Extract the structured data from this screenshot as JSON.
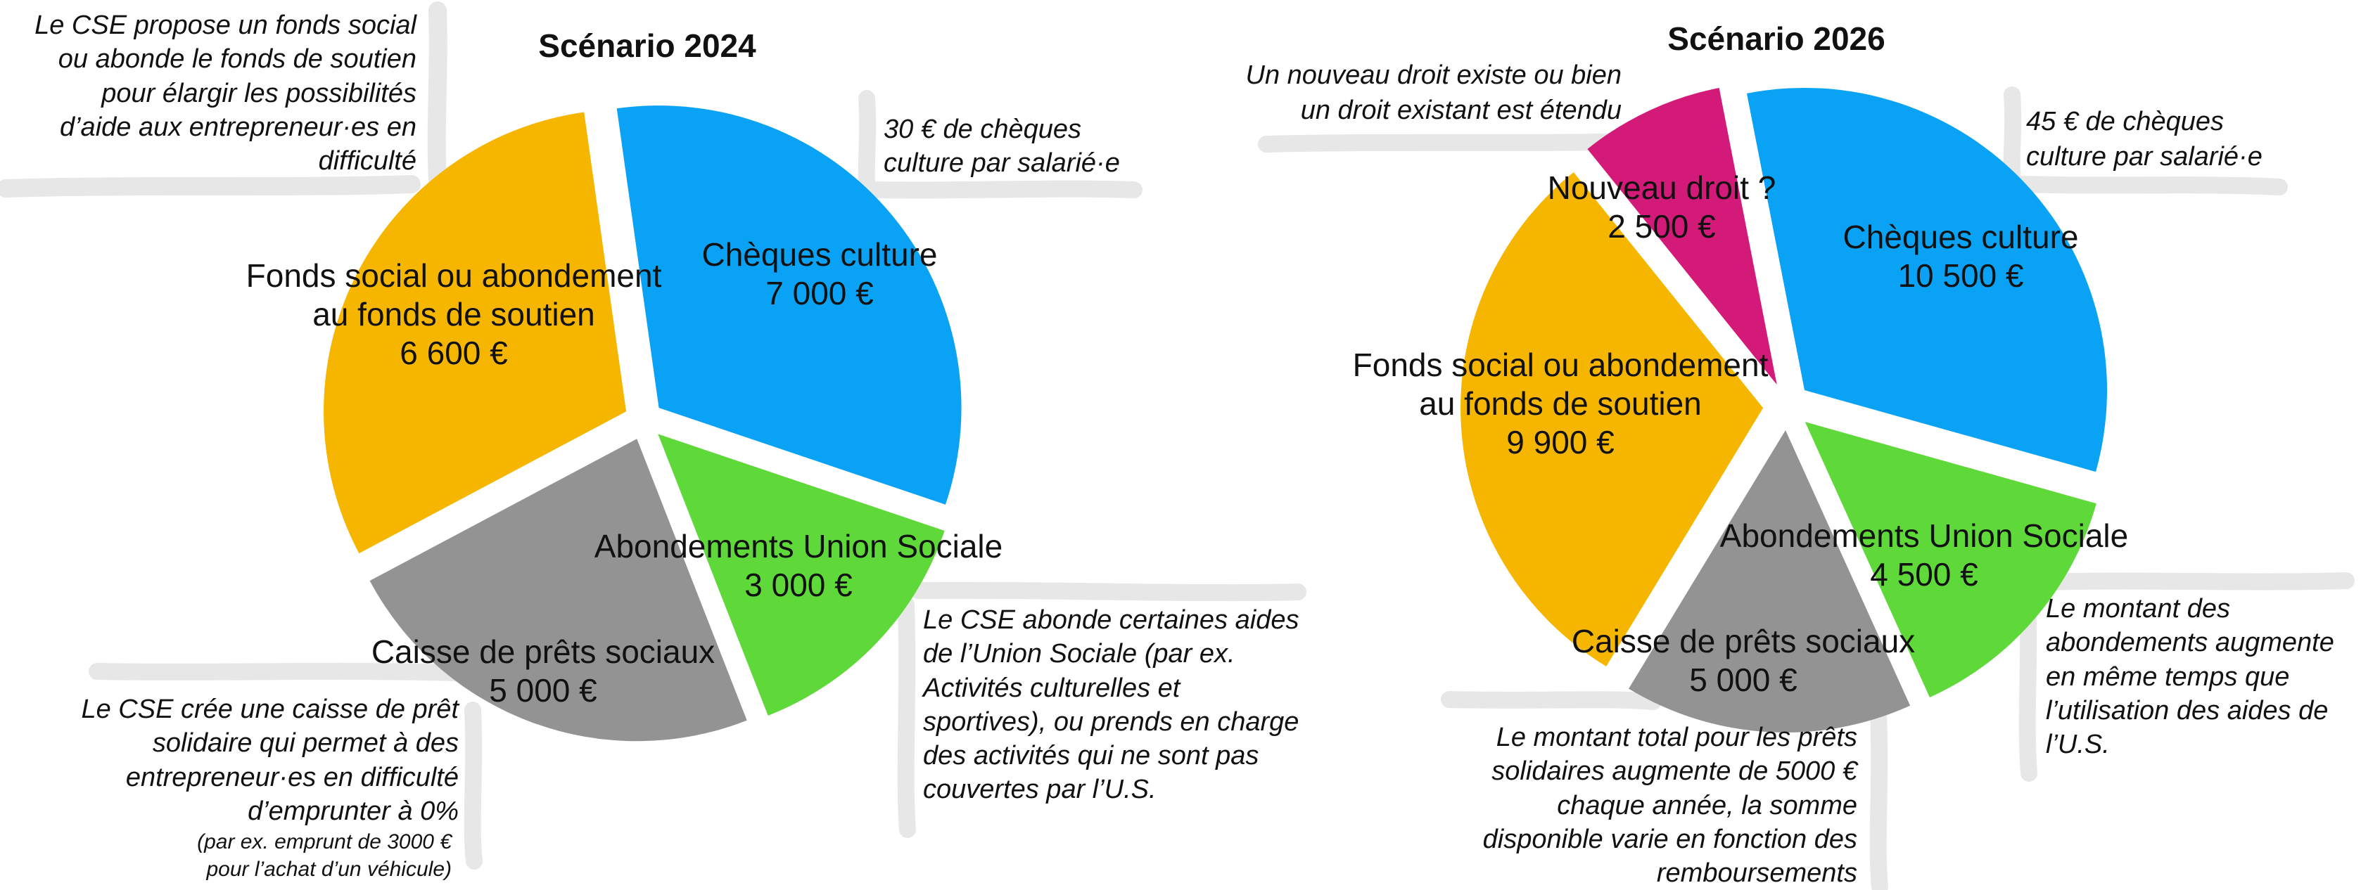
{
  "chart_data": [
    {
      "type": "pie",
      "title": "Scénario 2024",
      "colors": {
        "Chèques culture": "#0aa2f4",
        "Abondements Union Sociale": "#5fd83a",
        "Caisse de prêts sociaux": "#939393",
        "Fonds social ou abondement au fonds de soutien": "#f6b600"
      },
      "slices": [
        {
          "label": "Chèques culture",
          "value": 7000,
          "value_label": "7 000 €"
        },
        {
          "label": "Abondements Union Sociale",
          "value": 3000,
          "value_label": "3 000 €"
        },
        {
          "label": "Caisse de prêts sociaux",
          "value": 5000,
          "value_label": "5 000 €"
        },
        {
          "label": "Fonds social ou abondement au fonds de soutien",
          "label_lines": [
            "Fonds social ou abondement",
            "au fonds de soutien"
          ],
          "value": 6600,
          "value_label": "6 600 €"
        }
      ],
      "annotations": [
        {
          "text": "Le CSE propose un fonds social\nou abonde le fonds de soutien\npour élargir les possibilités\nd’aide aux entrepreneur·es en\ndifficulté"
        },
        {
          "text": "30 € de chèques\nculture par salarié·e"
        },
        {
          "text": "Le CSE abonde certaines aides\nde l’Union Sociale (par ex.\nActivités culturelles et\nsportives), ou prends en charge\ndes activités qui ne sont pas\ncouvertes par l’U.S."
        },
        {
          "text": "Le CSE crée une caisse de prêt\nsolidaire qui permet à des\nentrepreneur·es en difficulté\nd’emprunter à 0%",
          "small": "(par ex. emprunt de 3000 €\npour l’achat d’un véhicule)"
        }
      ]
    },
    {
      "type": "pie",
      "title": "Scénario 2026",
      "colors": {
        "Chèques culture": "#0aa2f4",
        "Abondements Union Sociale": "#5fd83a",
        "Caisse de prêts sociaux": "#939393",
        "Fonds social ou abondement au fonds de soutien": "#f6b600",
        "Nouveau droit ?": "#d41a78"
      },
      "slices": [
        {
          "label": "Chèques culture",
          "value": 10500,
          "value_label": "10 500 €"
        },
        {
          "label": "Abondements Union Sociale",
          "value": 4500,
          "value_label": "4 500 €"
        },
        {
          "label": "Caisse de prêts sociaux",
          "value": 5000,
          "value_label": "5 000 €"
        },
        {
          "label": "Fonds social ou abondement au fonds de soutien",
          "label_lines": [
            "Fonds social ou abondement",
            "au fonds de soutien"
          ],
          "value": 9900,
          "value_label": "9 900 €"
        },
        {
          "label": "Nouveau droit ?",
          "value": 2500,
          "value_label": "2 500 €"
        }
      ],
      "annotations": [
        {
          "text": "Un nouveau droit existe ou bien\nun droit existant est étendu"
        },
        {
          "text": "45 € de chèques\nculture par salarié·e"
        },
        {
          "text": "Le montant des\nabondements augmente\nen même temps que\nl’utilisation des aides de\nl’U.S."
        },
        {
          "text": "Le montant total pour les prêts\nsolidaires augmente de 5000 €\nchaque année, la somme\ndisponible varie en fonction des\nremboursements"
        }
      ]
    }
  ]
}
